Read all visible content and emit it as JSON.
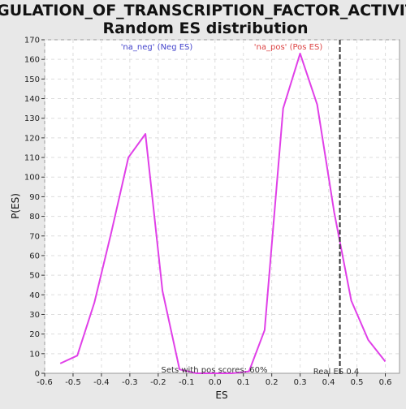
{
  "chart_data": {
    "type": "line",
    "title_line1": "REGULATION_OF_TRANSCRIPTION_FACTOR_ACTIVITY:",
    "title_line2": "Random ES distribution",
    "xlabel": "ES",
    "ylabel": "P(ES)",
    "xlim": [
      -0.6,
      0.65
    ],
    "ylim": [
      0,
      170
    ],
    "x_ticks": [
      -0.6,
      -0.5,
      -0.4,
      -0.3,
      -0.2,
      -0.1,
      0.0,
      0.1,
      0.2,
      0.3,
      0.4,
      0.5,
      0.6
    ],
    "x_tick_labels": [
      "-0.6",
      "-0.5",
      "-0.4",
      "-0.3",
      "-0.2",
      "-0.1",
      "0.0",
      "0.1",
      "0.2",
      "0.3",
      "0.4",
      "0.5",
      "0.6"
    ],
    "y_ticks": [
      0,
      10,
      20,
      30,
      40,
      50,
      60,
      70,
      80,
      90,
      100,
      110,
      120,
      130,
      140,
      150,
      160,
      170
    ],
    "grid": true,
    "series": [
      {
        "color": "#e040e8",
        "points": [
          [
            -0.545,
            5
          ],
          [
            -0.485,
            9
          ],
          [
            -0.425,
            36
          ],
          [
            -0.365,
            72
          ],
          [
            -0.305,
            110
          ],
          [
            -0.245,
            122
          ],
          [
            -0.185,
            42
          ],
          [
            -0.125,
            2
          ],
          [
            -0.065,
            0
          ],
          [
            0.0,
            0
          ],
          [
            0.06,
            0
          ],
          [
            0.12,
            1
          ],
          [
            0.175,
            22
          ],
          [
            0.24,
            135
          ],
          [
            0.3,
            163
          ],
          [
            0.36,
            137
          ],
          [
            0.42,
            82
          ],
          [
            0.48,
            37
          ],
          [
            0.54,
            17
          ],
          [
            0.6,
            6
          ]
        ]
      }
    ],
    "annotations": {
      "neg_label": "'na_neg' (Neg ES)",
      "neg_color": "#4444cc",
      "pos_label": "'na_pos' (Pos ES)",
      "pos_color": "#dd4444",
      "real_es_value": 0.44,
      "real_es_label": "Real ES 0.4",
      "sets_label": "Sets with pos scores: 60%"
    }
  }
}
